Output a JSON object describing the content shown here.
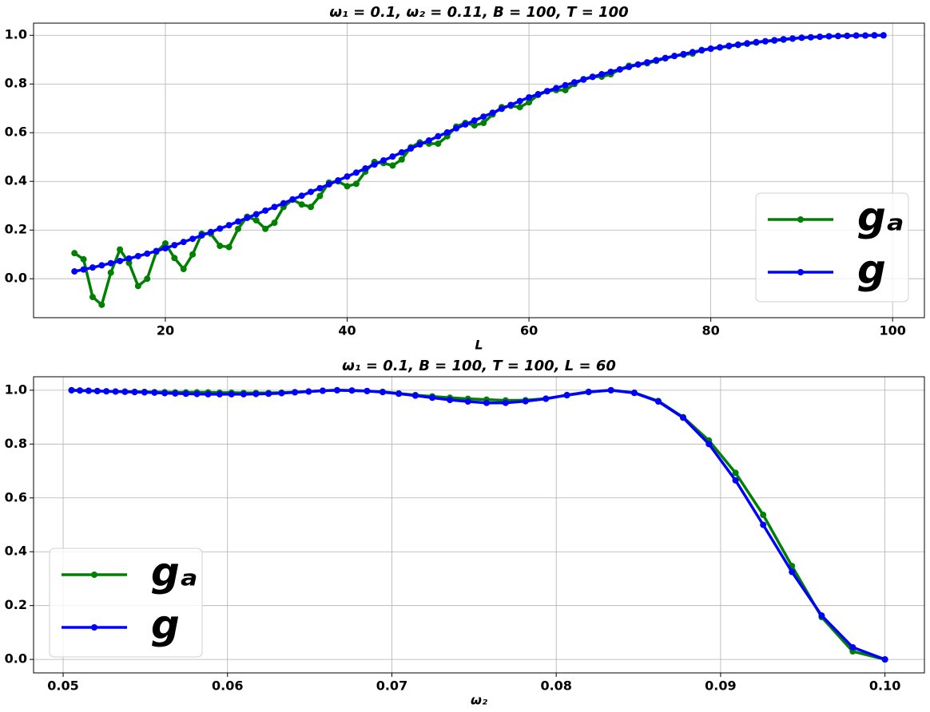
{
  "chart_data": [
    {
      "type": "line",
      "title": "ω₁ = 0.1, ω₂ = 0.11, B = 100, T = 100",
      "xlabel": "L",
      "x": [
        10,
        11,
        12,
        13,
        14,
        15,
        16,
        17,
        18,
        19,
        20,
        21,
        22,
        23,
        24,
        25,
        26,
        27,
        28,
        29,
        30,
        31,
        32,
        33,
        34,
        35,
        36,
        37,
        38,
        39,
        40,
        41,
        42,
        43,
        44,
        45,
        46,
        47,
        48,
        49,
        50,
        51,
        52,
        53,
        54,
        55,
        56,
        57,
        58,
        59,
        60,
        61,
        62,
        63,
        64,
        65,
        66,
        67,
        68,
        69,
        70,
        71,
        72,
        73,
        74,
        75,
        76,
        77,
        78,
        79,
        80,
        81,
        82,
        83,
        84,
        85,
        86,
        87,
        88,
        89,
        90,
        91,
        92,
        93,
        94,
        95,
        96,
        97,
        98,
        99
      ],
      "series": [
        {
          "name": "gₐ",
          "color": "#008000",
          "values": [
            0.105,
            0.08,
            -0.075,
            -0.107,
            0.025,
            0.12,
            0.065,
            -0.03,
            0.0,
            0.11,
            0.145,
            0.085,
            0.04,
            0.1,
            0.185,
            0.185,
            0.135,
            0.13,
            0.205,
            0.255,
            0.24,
            0.205,
            0.23,
            0.295,
            0.325,
            0.305,
            0.295,
            0.34,
            0.395,
            0.4,
            0.38,
            0.39,
            0.44,
            0.48,
            0.475,
            0.465,
            0.49,
            0.54,
            0.56,
            0.555,
            0.555,
            0.585,
            0.625,
            0.64,
            0.63,
            0.64,
            0.675,
            0.705,
            0.71,
            0.705,
            0.725,
            0.755,
            0.77,
            0.775,
            0.775,
            0.8,
            0.82,
            0.83,
            0.83,
            0.84,
            0.86,
            0.875,
            0.88,
            0.885,
            0.895,
            0.905,
            0.915,
            0.92,
            0.925,
            0.94,
            0.945,
            0.95,
            0.955,
            0.96,
            0.965,
            0.97,
            0.975,
            0.978,
            0.982,
            0.986,
            0.99,
            0.992,
            0.994,
            0.996,
            0.997,
            0.998,
            0.999,
            0.999,
            1.0,
            1.0
          ]
        },
        {
          "name": "g",
          "color": "#0000ff",
          "values": [
            0.03,
            0.038,
            0.046,
            0.055,
            0.064,
            0.073,
            0.083,
            0.093,
            0.103,
            0.114,
            0.125,
            0.138,
            0.151,
            0.164,
            0.178,
            0.192,
            0.206,
            0.22,
            0.235,
            0.25,
            0.265,
            0.28,
            0.295,
            0.31,
            0.326,
            0.341,
            0.357,
            0.372,
            0.388,
            0.404,
            0.42,
            0.436,
            0.453,
            0.469,
            0.486,
            0.502,
            0.519,
            0.535,
            0.552,
            0.568,
            0.585,
            0.601,
            0.618,
            0.634,
            0.65,
            0.666,
            0.682,
            0.698,
            0.714,
            0.73,
            0.745,
            0.758,
            0.771,
            0.783,
            0.795,
            0.807,
            0.818,
            0.829,
            0.84,
            0.85,
            0.86,
            0.87,
            0.88,
            0.889,
            0.898,
            0.907,
            0.915,
            0.923,
            0.931,
            0.938,
            0.945,
            0.951,
            0.957,
            0.962,
            0.967,
            0.972,
            0.976,
            0.98,
            0.984,
            0.987,
            0.99,
            0.992,
            0.994,
            0.996,
            0.997,
            0.998,
            0.999,
            0.999,
            1.0,
            1.0
          ]
        }
      ],
      "xlim": [
        5.5,
        103.5
      ],
      "xticks": [
        20,
        40,
        60,
        80,
        100
      ],
      "ylim": [
        -0.16,
        1.05
      ],
      "yticks": [
        {
          "value": 0,
          "label": "0.0"
        },
        0.2,
        0.4,
        0.6,
        0.8,
        {
          "value": 1,
          "label": "1.0"
        }
      ],
      "grid": true,
      "legend": "lower right"
    },
    {
      "type": "line",
      "title": "ω₁ = 0.1, B = 100, T = 100, L = 60",
      "xlabel": "ω₂",
      "x": [
        0.05051,
        0.05102,
        0.05155,
        0.05208,
        0.05263,
        0.05319,
        0.05376,
        0.05435,
        0.05495,
        0.05556,
        0.05618,
        0.05682,
        0.05747,
        0.05814,
        0.05882,
        0.05952,
        0.06024,
        0.06098,
        0.06173,
        0.0625,
        0.06329,
        0.0641,
        0.06494,
        0.06579,
        0.06667,
        0.06757,
        0.06849,
        0.06944,
        0.07042,
        0.07143,
        0.07246,
        0.07353,
        0.07463,
        0.07576,
        0.07692,
        0.07813,
        0.07937,
        0.08065,
        0.08197,
        0.08333,
        0.08475,
        0.08621,
        0.08772,
        0.08929,
        0.09091,
        0.09259,
        0.09434,
        0.09615,
        0.09804,
        0.1
      ],
      "series": [
        {
          "name": "gₐ",
          "color": "#008000",
          "values": [
            1.0,
            0.999,
            0.998,
            0.997,
            0.996,
            0.995,
            0.995,
            0.994,
            0.994,
            0.993,
            0.993,
            0.992,
            0.992,
            0.992,
            0.992,
            0.991,
            0.991,
            0.99,
            0.99,
            0.99,
            0.991,
            0.993,
            0.995,
            0.998,
            1.0,
            0.999,
            0.997,
            0.994,
            0.988,
            0.982,
            0.977,
            0.972,
            0.968,
            0.965,
            0.962,
            0.963,
            0.969,
            0.981,
            0.993,
            1.0,
            0.991,
            0.96,
            0.9,
            0.813,
            0.693,
            0.537,
            0.347,
            0.157,
            0.03,
            0.0
          ]
        },
        {
          "name": "g",
          "color": "#0000ff",
          "values": [
            1.0,
            0.999,
            0.998,
            0.997,
            0.996,
            0.995,
            0.994,
            0.993,
            0.992,
            0.991,
            0.989,
            0.988,
            0.987,
            0.986,
            0.985,
            0.985,
            0.985,
            0.985,
            0.986,
            0.987,
            0.989,
            0.992,
            0.995,
            0.998,
            1.0,
            0.999,
            0.997,
            0.993,
            0.987,
            0.98,
            0.972,
            0.964,
            0.958,
            0.953,
            0.953,
            0.959,
            0.968,
            0.982,
            0.994,
            1.0,
            0.99,
            0.958,
            0.898,
            0.8,
            0.665,
            0.5,
            0.325,
            0.163,
            0.045,
            0.0
          ]
        }
      ],
      "xlim": [
        0.0482,
        0.1024
      ],
      "xticks": [
        0.05,
        0.06,
        0.07,
        0.08,
        0.09,
        {
          "value": 0.1,
          "label": "0.10"
        }
      ],
      "ylim": [
        -0.05,
        1.05
      ],
      "yticks": [
        {
          "value": 0,
          "label": "0.0"
        },
        0.2,
        0.4,
        0.6,
        0.8,
        {
          "value": 1,
          "label": "1.0"
        }
      ],
      "grid": true,
      "legend": "lower left"
    }
  ]
}
